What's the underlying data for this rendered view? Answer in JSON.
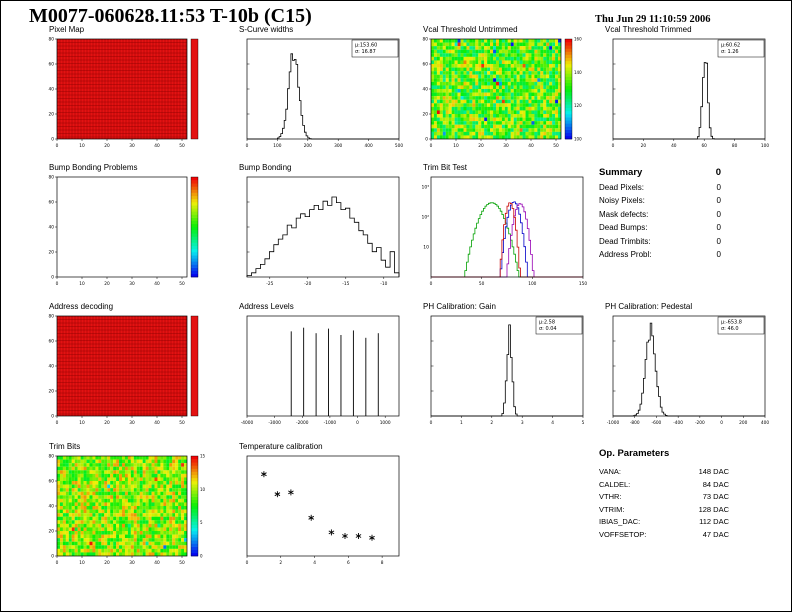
{
  "page": {
    "title": "M0077-060628.11:53 T-10b (C15)",
    "timestamp": "Thu Jun 29 11:10:59 2006"
  },
  "summary": {
    "heading": "Summary",
    "total": "0",
    "rows": [
      {
        "label": "Dead Pixels:",
        "value": "0"
      },
      {
        "label": "Noisy Pixels:",
        "value": "0"
      },
      {
        "label": "Mask defects:",
        "value": "0"
      },
      {
        "label": "Dead Bumps:",
        "value": "0"
      },
      {
        "label": "Dead Trimbits:",
        "value": "0"
      },
      {
        "label": "Address Probl:",
        "value": "0"
      }
    ]
  },
  "op_parameters": {
    "heading": "Op. Parameters",
    "rows": [
      {
        "label": "VANA:",
        "value": "148 DAC"
      },
      {
        "label": "CALDEL:",
        "value": "84 DAC"
      },
      {
        "label": "VTHR:",
        "value": "73 DAC"
      },
      {
        "label": "VTRIM:",
        "value": "128 DAC"
      },
      {
        "label": "IBIAS_DAC:",
        "value": "112 DAC"
      },
      {
        "label": "VOFFSETOP:",
        "value": "47 DAC"
      }
    ]
  },
  "chart_data": [
    {
      "id": "pixel_map",
      "type": "heatmap",
      "title": "Pixel Map",
      "style": "uniform-red",
      "grid": [
        52,
        80
      ],
      "value_uniform": 1,
      "xlim": [
        0,
        52
      ],
      "xticks": [
        0,
        10,
        20,
        30,
        40,
        50
      ],
      "ylim": [
        0,
        80
      ],
      "yticks": [
        0,
        20,
        40,
        60,
        80
      ],
      "colorbar": "red",
      "fill_color": "#e31212"
    },
    {
      "id": "scurve_widths",
      "type": "hist",
      "title": "S-Curve widths",
      "mu": 153.6,
      "sigma": 16.87,
      "stats": [
        "μ:153.60",
        "σ: 16.87"
      ],
      "xlim": [
        0,
        500
      ],
      "xticks": [
        0,
        100,
        200,
        300,
        400,
        500
      ],
      "seed": 3
    },
    {
      "id": "vcal_untrimmed",
      "type": "heatmap",
      "title": "Vcal Threshold Untrimmed",
      "style": "noise",
      "grid": [
        52,
        80
      ],
      "noise_range": [
        0.35,
        0.8
      ],
      "outlier_frac": 0.04,
      "xlim": [
        0,
        52
      ],
      "xticks": [
        0,
        10,
        20,
        30,
        40,
        50
      ],
      "ylim": [
        0,
        80
      ],
      "yticks": [
        0,
        20,
        40,
        60,
        80
      ],
      "colorbar": "rainbow",
      "cbar_ticks": [
        100,
        120,
        140,
        160
      ],
      "seed": 7
    },
    {
      "id": "vcal_trimmed",
      "type": "hist",
      "title": "Vcal Threshold Trimmed",
      "mu": 60.62,
      "sigma": 1.26,
      "stats": [
        "μ:60.62",
        "σ: 1.26"
      ],
      "xlim": [
        0,
        100
      ],
      "xticks": [
        0,
        20,
        40,
        60,
        80,
        100
      ],
      "seed": 4
    },
    {
      "id": "bump_problems",
      "type": "heatmap",
      "title": "Bump Bonding Problems",
      "style": "empty",
      "grid": [
        52,
        80
      ],
      "xlim": [
        0,
        52
      ],
      "xticks": [
        0,
        10,
        20,
        30,
        40,
        50
      ],
      "ylim": [
        0,
        80
      ],
      "yticks": [
        0,
        20,
        40,
        60,
        80
      ],
      "colorbar": "rainbow"
    },
    {
      "id": "bump_bonding",
      "type": "hist_bins",
      "title": "Bump Bonding",
      "xlim": [
        -28,
        -8
      ],
      "xticks": [
        -25,
        -20,
        -15,
        -10
      ],
      "bins": [
        1,
        3,
        6,
        9,
        13,
        18,
        23,
        27,
        30,
        37,
        35,
        42,
        45,
        43,
        48,
        51,
        48,
        54,
        51,
        57,
        53,
        48,
        49,
        42,
        39,
        33,
        30,
        24,
        18,
        21,
        12,
        7,
        18,
        3
      ]
    },
    {
      "id": "trimbit_test",
      "type": "hist_multi_log",
      "title": "Trim Bit Test",
      "xlim": [
        0,
        150
      ],
      "xticks": [
        0,
        50,
        100,
        150
      ],
      "ylog_labels": [
        "10",
        "10²",
        "10³"
      ],
      "series": [
        {
          "color_name": "green",
          "color": "#00a000",
          "mu": 60,
          "sigma": 8,
          "peak": 300
        },
        {
          "color_name": "blue",
          "color": "#0000c8",
          "mu": 82,
          "sigma": 4,
          "peak": 320
        },
        {
          "color_name": "purple",
          "color": "#9600b4",
          "mu": 88,
          "sigma": 4,
          "peak": 280
        },
        {
          "color_name": "red",
          "color": "#c80000",
          "mu": 78,
          "sigma": 3,
          "peak": 300
        }
      ]
    },
    {
      "id": "address_decoding",
      "type": "heatmap",
      "title": "Address decoding",
      "style": "uniform-red",
      "grid": [
        52,
        80
      ],
      "value_uniform": 1,
      "xlim": [
        0,
        52
      ],
      "xticks": [
        0,
        10,
        20,
        30,
        40,
        50
      ],
      "ylim": [
        0,
        80
      ],
      "yticks": [
        0,
        20,
        40,
        60,
        80
      ],
      "colorbar": "red",
      "fill_color": "#e31212"
    },
    {
      "id": "address_levels",
      "type": "spikes",
      "title": "Address Levels",
      "xlim": [
        -4000,
        1500
      ],
      "xticks": [
        -4000,
        -3000,
        -2000,
        -1000,
        0,
        1000
      ],
      "spikes": [
        {
          "x": -2400,
          "h": 0.92
        },
        {
          "x": -1950,
          "h": 0.96
        },
        {
          "x": -1500,
          "h": 0.9
        },
        {
          "x": -1050,
          "h": 0.95
        },
        {
          "x": -600,
          "h": 0.88
        },
        {
          "x": -150,
          "h": 0.93
        },
        {
          "x": 300,
          "h": 0.85
        },
        {
          "x": 750,
          "h": 0.9
        }
      ]
    },
    {
      "id": "ph_gain",
      "type": "hist",
      "title": "PH Calibration: Gain",
      "mu": 2.58,
      "sigma": 0.04,
      "stats": [
        "μ:2.58",
        "σ: 0.04"
      ],
      "xlim": [
        0,
        5
      ],
      "xticks": [
        0,
        1,
        2,
        3,
        4,
        5
      ],
      "seed": 5
    },
    {
      "id": "ph_pedestal",
      "type": "hist",
      "title": "PH Calibration: Pedestal",
      "mu": -653.8,
      "sigma": 46.0,
      "stats": [
        "μ:-653.8",
        "σ: 46.0"
      ],
      "xlim": [
        -1000,
        400
      ],
      "xticks": [
        -1000,
        -800,
        -600,
        -400,
        -200,
        0,
        200,
        400
      ],
      "seed": 6
    },
    {
      "id": "trim_bits",
      "type": "heatmap",
      "title": "Trim Bits",
      "style": "noise",
      "grid": [
        52,
        80
      ],
      "noise_range": [
        0.45,
        0.85
      ],
      "outlier_frac": 0.02,
      "xlim": [
        0,
        52
      ],
      "xticks": [
        0,
        10,
        20,
        30,
        40,
        50
      ],
      "ylim": [
        0,
        80
      ],
      "yticks": [
        0,
        20,
        40,
        60,
        80
      ],
      "colorbar": "rainbow",
      "cbar_ticks": [
        0,
        5,
        10,
        15
      ],
      "seed": 23
    },
    {
      "id": "temperature_calibration",
      "type": "scatter",
      "title": "Temperature calibration",
      "marker": "asterisk",
      "xlim": [
        0,
        9
      ],
      "xticks": [
        0,
        2,
        4,
        6,
        8
      ],
      "ylim": [
        0,
        55
      ],
      "x": [
        1,
        1.8,
        2.6,
        3.8,
        5,
        5.8,
        6.6,
        7.4
      ],
      "y": [
        45,
        34,
        35,
        21,
        13,
        11,
        11,
        10
      ]
    }
  ]
}
